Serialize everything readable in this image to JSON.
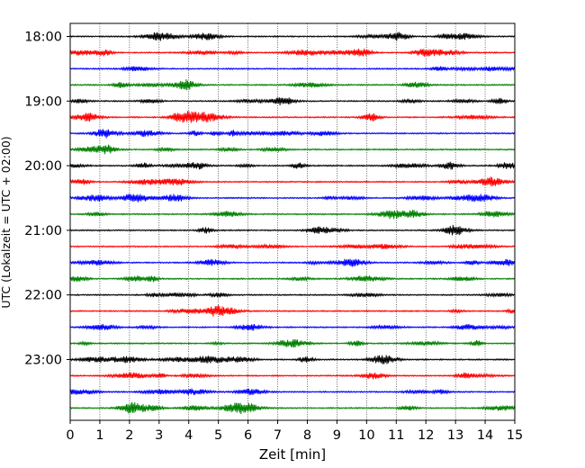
{
  "chart_data": {
    "type": "line",
    "subtype": "helicorder",
    "xlabel": "Zeit  [min]",
    "ylabel": "UTC (Lokalzeit = UTC + 02:00)",
    "xlim": [
      0,
      15
    ],
    "x_ticks": [
      "0",
      "1",
      "2",
      "3",
      "4",
      "5",
      "6",
      "7",
      "8",
      "9",
      "10",
      "11",
      "12",
      "13",
      "14",
      "15"
    ],
    "y_tick_labels": [
      "18:00",
      "19:00",
      "20:00",
      "21:00",
      "22:00",
      "23:00"
    ],
    "trace_start_times": [
      "18:00",
      "18:15",
      "18:30",
      "18:45",
      "19:00",
      "19:15",
      "19:30",
      "19:45",
      "20:00",
      "20:15",
      "20:30",
      "20:45",
      "21:00",
      "21:15",
      "21:30",
      "21:45",
      "22:00",
      "22:15",
      "22:30",
      "22:45",
      "23:00",
      "23:15",
      "23:30",
      "23:45"
    ],
    "trace_minutes": 15,
    "trace_colors": [
      "#000000",
      "#ff0000",
      "#0000ff",
      "#008000"
    ],
    "grid": "vertical dotted lines at each minute",
    "legend": "none"
  }
}
